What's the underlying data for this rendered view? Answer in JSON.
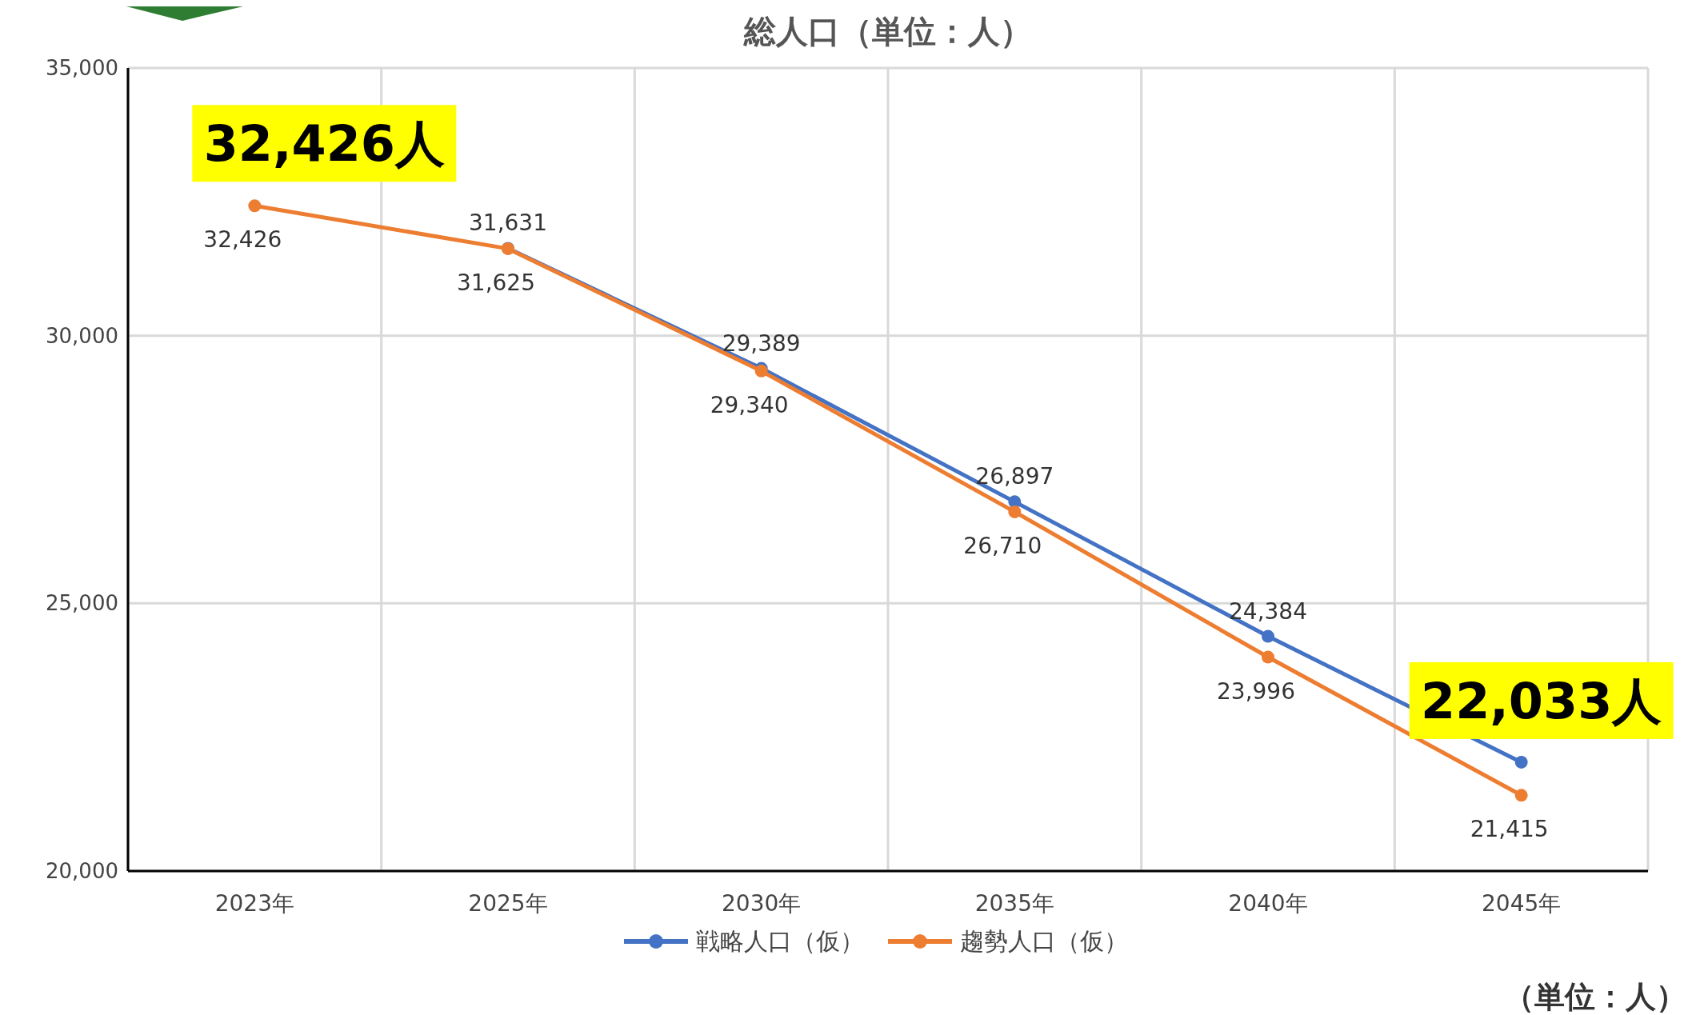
{
  "chart_data": {
    "type": "line",
    "title": "総人口（単位：人）",
    "categories": [
      "2023年",
      "2025年",
      "2030年",
      "2035年",
      "2040年",
      "2045年"
    ],
    "series": [
      {
        "name": "戦略人口（仮）",
        "color": "#4472c4",
        "values": [
          null,
          31631,
          29389,
          26897,
          24384,
          22033
        ],
        "value_labels": [
          null,
          "31,631",
          "29,389",
          "26,897",
          "24,384",
          null
        ]
      },
      {
        "name": "趨勢人口（仮）",
        "color": "#ed7d31",
        "values": [
          32426,
          31625,
          29340,
          26710,
          23996,
          21415
        ],
        "value_labels": [
          "32,426",
          "31,625",
          "29,340",
          "26,710",
          "23,996",
          "21,415"
        ]
      }
    ],
    "ylim": [
      20000,
      35000
    ],
    "yticks": [
      {
        "value": 20000,
        "label": "20,000"
      },
      {
        "value": 25000,
        "label": "25,000"
      },
      {
        "value": 30000,
        "label": "30,000"
      },
      {
        "value": 35000,
        "label": "35,000"
      }
    ],
    "grid": true,
    "legend": "bottom",
    "marker": "circle",
    "line_style": "solid",
    "annotations": [
      {
        "text": "32,426人",
        "x": "2023年",
        "y": 32426
      },
      {
        "text": "22,033人",
        "x": "2045年",
        "y": 22033
      },
      "（単位：人）"
    ]
  }
}
